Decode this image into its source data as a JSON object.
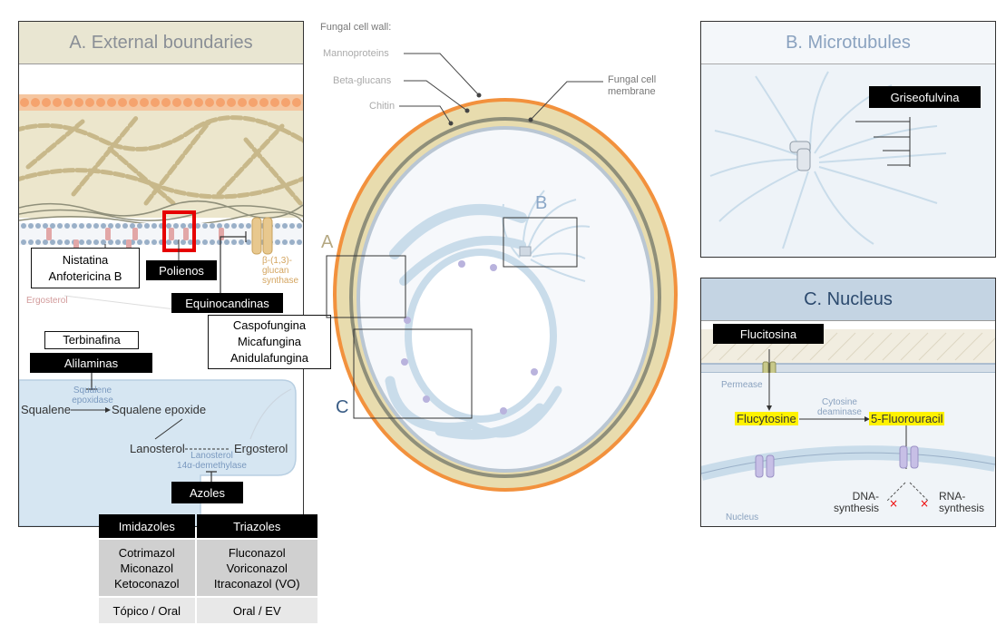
{
  "panel_a": {
    "title": "A. External boundaries",
    "ergosterol": "Ergosterol",
    "glucan_synthase": "β-(1,3)-\nglucan\nsynthase",
    "squalene_epoxidase": "Squalene\nepoxidase",
    "squalene": "Squalene",
    "squalene_epoxide": "Squalene epoxide",
    "lanosterol": "Lanosterol",
    "ergosterol_product": "Ergosterol",
    "demethylase": "Lanosterol\n14α-demethylase",
    "labels": {
      "nistatina": "Nistatina\nAnfotericina B",
      "polienos": "Polienos",
      "equinocandinas": "Equinocandinas",
      "candinas_drugs": "Caspofungina\nMicafungina\nAnidulafungina",
      "terbinafina": "Terbinafina",
      "alilaminas": "Alilaminas",
      "azoles": "Azoles"
    }
  },
  "center": {
    "wall_title": "Fungal cell wall:",
    "mannoproteins": "Mannoproteins",
    "beta_glucans": "Beta-glucans",
    "chitin": "Chitin",
    "membrane": "Fungal cell\nmembrane",
    "marker_a": "A",
    "marker_b": "B",
    "marker_c": "C"
  },
  "panel_b": {
    "title": "B. Microtubules",
    "griseofulvina": "Griseofulvina"
  },
  "panel_c": {
    "title": "C. Nucleus",
    "flucitosina": "Flucitosina",
    "permease": "Permease",
    "flucytosine": "Flucytosine",
    "cytosine_deaminase": "Cytosine\ndeaminase",
    "fluorouracil": "5-Fluorouracil",
    "dna": "DNA-\nsynthesis",
    "rna": "RNA-\nsynthesis",
    "nucleus": "Nucleus"
  },
  "azole_table": {
    "headers": [
      "Imidazoles",
      "Triazoles"
    ],
    "drugs": [
      "Cotrimazol\nMiconazol\nKetoconazol",
      "Fluconazol\nVoriconazol\nItraconazol (VO)"
    ],
    "routes": [
      "Tópico / Oral",
      "Oral / EV"
    ]
  },
  "colors": {
    "wall_orange": "#f2913d",
    "wall_beige": "#e8dcae",
    "membrane_gray": "#8f8f7a",
    "cell_blue": "#c9dcea",
    "header_beige": "#e9e6d2",
    "header_blue": "#c4d4e3",
    "highlight": "#fff200",
    "polienos_box": "#e60000"
  }
}
